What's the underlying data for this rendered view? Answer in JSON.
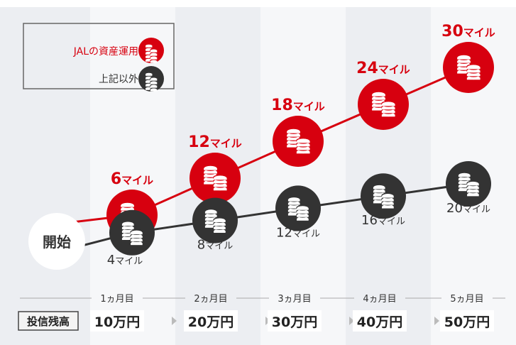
{
  "chart_data": {
    "type": "line",
    "start_label": "開始",
    "categories": [
      "1ヵ月目",
      "2ヵ月目",
      "3ヵ月目",
      "4ヵ月目",
      "5ヵ月目"
    ],
    "unit": "マイル",
    "series": [
      {
        "name": "JALの資産運用",
        "values": [
          6,
          12,
          18,
          24,
          30
        ],
        "color": "#d7000f"
      },
      {
        "name": "上記以外",
        "values": [
          4,
          8,
          12,
          16,
          20
        ],
        "color": "#333333"
      }
    ],
    "balance_label": "投信残高",
    "balances": [
      "10万円",
      "20万円",
      "30万円",
      "40万円",
      "50万円"
    ],
    "legend_position": "top-left",
    "icon": "coin-stack-icon"
  }
}
